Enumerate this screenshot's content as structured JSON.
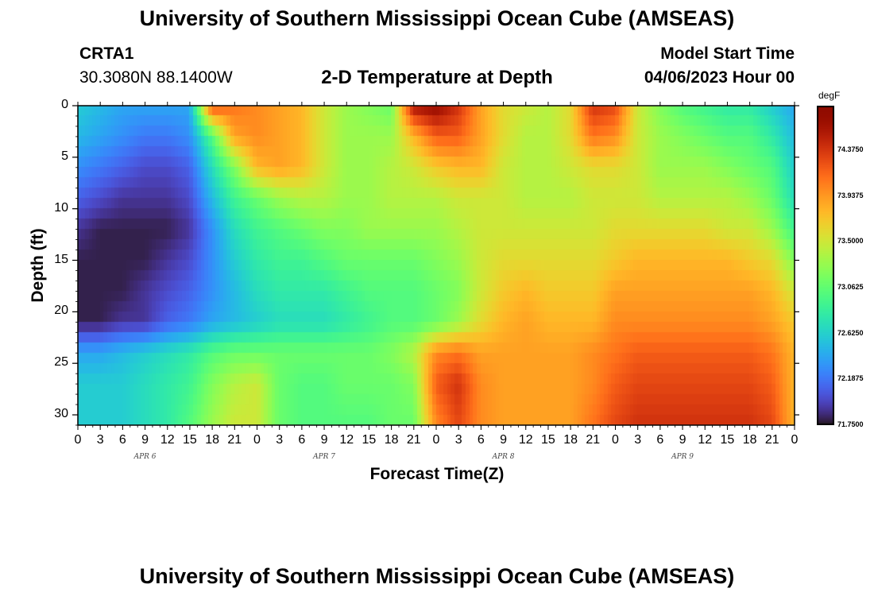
{
  "header": {
    "title": "University of Southern Mississippi Ocean Cube (AMSEAS)",
    "station": "CRTA1",
    "coords": "30.3080N  88.1400W",
    "plot_title": "2-D Temperature at Depth",
    "model_start_label": "Model Start Time",
    "model_start_value": "04/06/2023 Hour 00"
  },
  "footer": {
    "title": "University of Southern Mississippi Ocean Cube (AMSEAS)"
  },
  "chart_data": {
    "type": "heatmap",
    "title": "2-D Temperature at Depth",
    "xlabel": "Forecast Time(Z)",
    "ylabel": "Depth (ft)",
    "x_tick_labels": [
      "0",
      "3",
      "6",
      "9",
      "12",
      "15",
      "18",
      "21",
      "0",
      "3",
      "6",
      "9",
      "12",
      "15",
      "18",
      "21",
      "0",
      "3",
      "6",
      "9",
      "12",
      "15",
      "18",
      "21",
      "0",
      "3",
      "6",
      "9",
      "12",
      "15",
      "18",
      "21",
      "0"
    ],
    "day_labels": [
      "APR 6",
      "APR 7",
      "APR 8",
      "APR 9"
    ],
    "xlim_hours": [
      0,
      96
    ],
    "y_ticks": [
      0,
      5,
      10,
      15,
      20,
      25,
      30
    ],
    "ylim": [
      0,
      31
    ],
    "y_inverted": true,
    "colorbar": {
      "unit": "degF",
      "ticks": [
        "74.3750",
        "73.9375",
        "73.5000",
        "73.0625",
        "72.6250",
        "72.1875",
        "71.7500"
      ],
      "range": [
        71.75,
        74.8
      ],
      "colormap": "turbo"
    },
    "depths_ft": [
      0,
      3,
      6,
      9,
      12,
      15,
      18,
      21,
      24,
      27,
      31
    ],
    "hours": [
      0,
      3,
      6,
      9,
      12,
      15,
      18,
      21,
      24,
      27,
      30,
      33,
      36,
      39,
      42,
      45,
      48,
      51,
      54,
      57,
      60,
      63,
      66,
      69,
      72,
      75,
      78,
      81,
      84,
      87,
      90,
      93,
      96
    ],
    "values": [
      [
        72.6,
        72.5,
        72.4,
        72.4,
        72.4,
        72.4,
        74.3,
        74.1,
        74.0,
        73.9,
        73.8,
        73.5,
        73.3,
        73.2,
        73.1,
        74.6,
        74.7,
        74.4,
        73.9,
        73.6,
        73.5,
        73.4,
        73.6,
        74.4,
        74.3,
        73.5,
        73.2,
        73.0,
        72.9,
        72.8,
        72.8,
        72.6,
        72.4
      ],
      [
        72.5,
        72.4,
        72.3,
        72.2,
        72.2,
        72.3,
        73.0,
        73.9,
        74.0,
        73.9,
        73.8,
        73.5,
        73.3,
        73.3,
        73.3,
        73.8,
        74.2,
        74.2,
        73.9,
        73.6,
        73.4,
        73.4,
        73.6,
        74.1,
        74.0,
        73.5,
        73.3,
        73.2,
        73.1,
        73.0,
        73.0,
        72.8,
        72.5
      ],
      [
        72.3,
        72.2,
        72.1,
        72.0,
        72.0,
        72.1,
        72.7,
        73.2,
        73.8,
        73.9,
        73.8,
        73.5,
        73.3,
        73.3,
        73.4,
        73.5,
        73.7,
        73.8,
        73.8,
        73.5,
        73.4,
        73.4,
        73.5,
        73.6,
        73.6,
        73.5,
        73.3,
        73.3,
        73.3,
        73.2,
        73.1,
        73.0,
        72.6
      ],
      [
        72.1,
        72.0,
        71.9,
        71.9,
        71.9,
        72.0,
        72.5,
        72.9,
        73.1,
        73.3,
        73.4,
        73.4,
        73.3,
        73.3,
        73.4,
        73.4,
        73.4,
        73.5,
        73.5,
        73.5,
        73.4,
        73.4,
        73.4,
        73.5,
        73.5,
        73.5,
        73.4,
        73.4,
        73.4,
        73.4,
        73.3,
        73.1,
        72.7
      ],
      [
        71.9,
        71.8,
        71.8,
        71.8,
        71.8,
        71.9,
        72.3,
        72.7,
        72.9,
        73.0,
        73.1,
        73.2,
        73.2,
        73.3,
        73.3,
        73.3,
        73.3,
        73.4,
        73.5,
        73.5,
        73.5,
        73.5,
        73.5,
        73.5,
        73.6,
        73.6,
        73.6,
        73.6,
        73.6,
        73.5,
        73.5,
        73.3,
        72.9
      ],
      [
        71.8,
        71.8,
        71.8,
        71.8,
        71.9,
        72.0,
        72.3,
        72.6,
        72.8,
        72.9,
        72.9,
        73.0,
        73.1,
        73.1,
        73.1,
        73.1,
        73.2,
        73.3,
        73.5,
        73.6,
        73.6,
        73.6,
        73.6,
        73.6,
        73.7,
        73.8,
        73.8,
        73.8,
        73.8,
        73.8,
        73.7,
        73.6,
        73.2
      ],
      [
        71.8,
        71.8,
        71.8,
        71.9,
        72.0,
        72.1,
        72.3,
        72.5,
        72.7,
        72.8,
        72.8,
        72.8,
        72.9,
        73.0,
        73.0,
        73.0,
        73.1,
        73.2,
        73.5,
        73.7,
        73.8,
        73.7,
        73.7,
        73.7,
        73.9,
        73.9,
        73.9,
        73.9,
        73.9,
        73.9,
        73.9,
        73.8,
        73.5
      ],
      [
        71.8,
        71.8,
        71.9,
        71.9,
        72.1,
        72.2,
        72.4,
        72.5,
        72.6,
        72.7,
        72.7,
        72.7,
        72.8,
        72.9,
        73.0,
        73.0,
        73.1,
        73.3,
        73.6,
        73.8,
        73.9,
        73.8,
        73.8,
        73.8,
        74.0,
        74.0,
        74.0,
        74.0,
        74.0,
        74.0,
        74.0,
        73.9,
        73.7
      ],
      [
        72.4,
        72.4,
        72.5,
        72.6,
        72.7,
        72.8,
        73.0,
        73.1,
        73.1,
        73.1,
        73.1,
        73.1,
        73.1,
        73.1,
        73.2,
        73.4,
        74.0,
        74.1,
        73.9,
        73.9,
        73.9,
        73.9,
        73.9,
        74.0,
        74.1,
        74.2,
        74.2,
        74.2,
        74.2,
        74.2,
        74.2,
        74.1,
        73.8
      ],
      [
        72.6,
        72.6,
        72.6,
        72.7,
        72.8,
        72.9,
        73.2,
        73.4,
        73.5,
        73.1,
        73.0,
        73.0,
        73.1,
        73.1,
        73.1,
        73.2,
        74.2,
        74.4,
        74.0,
        73.9,
        73.9,
        73.9,
        73.9,
        74.0,
        74.2,
        74.3,
        74.3,
        74.3,
        74.3,
        74.3,
        74.3,
        74.2,
        73.8
      ],
      [
        72.6,
        72.6,
        72.6,
        72.7,
        72.8,
        73.0,
        73.3,
        73.5,
        73.5,
        73.1,
        73.0,
        73.0,
        73.0,
        73.0,
        73.1,
        73.1,
        74.0,
        74.3,
        74.0,
        73.9,
        73.9,
        73.9,
        73.9,
        74.1,
        74.3,
        74.4,
        74.4,
        74.4,
        74.4,
        74.4,
        74.4,
        74.3,
        73.8
      ]
    ]
  }
}
